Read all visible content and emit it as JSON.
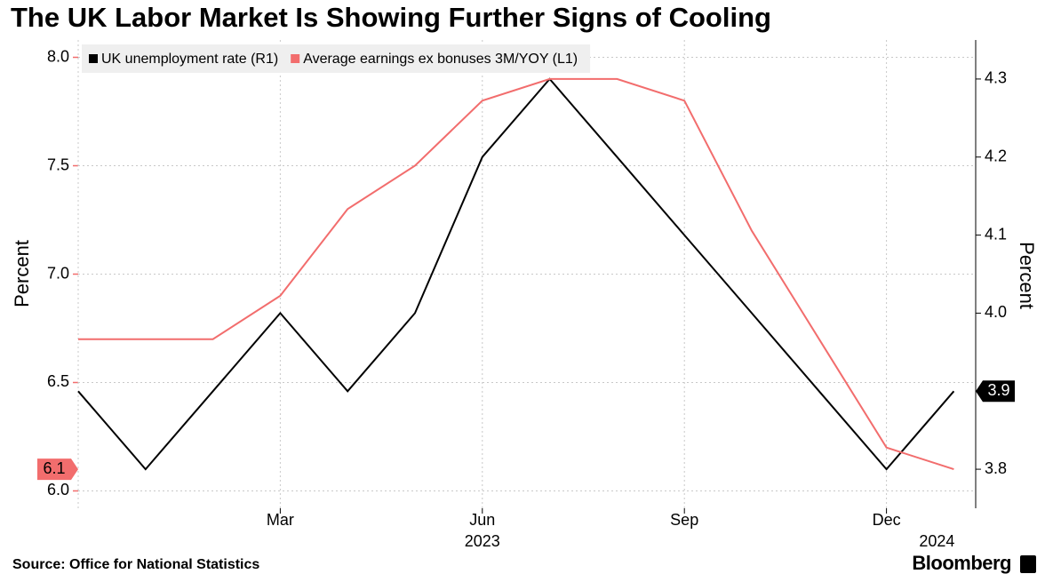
{
  "chart_data": {
    "type": "line",
    "title": "The UK Labor Market Is Showing Further Signs of Cooling",
    "source": "Source: Office for National Statistics",
    "brand": "Bloomberg",
    "ylabel": "Percent",
    "y2label": "Percent",
    "categories": [
      null,
      null,
      null,
      "Mar",
      null,
      null,
      "Jun",
      null,
      null,
      "Sep",
      null,
      null,
      "Dec",
      null
    ],
    "category_years": [
      null,
      null,
      null,
      null,
      null,
      null,
      "2023",
      null,
      null,
      null,
      null,
      null,
      null,
      "2024"
    ],
    "series": [
      {
        "name": "UK unemployment rate (R1)",
        "color": "#000000",
        "axis": "y2",
        "values": [
          3.9,
          3.8,
          3.9,
          4.0,
          3.9,
          4.0,
          4.2,
          4.3,
          4.2,
          4.1,
          4.0,
          3.9,
          3.8,
          3.9
        ]
      },
      {
        "name": "Average earnings ex bonuses 3M/YOY (L1)",
        "color": "#f26d6d",
        "values": [
          6.7,
          6.7,
          6.7,
          6.9,
          7.3,
          7.5,
          7.8,
          7.9,
          7.9,
          7.8,
          7.2,
          6.7,
          6.2,
          6.1
        ]
      }
    ],
    "ylim": [
      5.92,
      8.08
    ],
    "yticks": [
      {
        "value": 6,
        "label": "6.0"
      },
      6.5,
      {
        "value": 7,
        "label": "7.0"
      },
      7.5,
      {
        "value": 8,
        "label": "8.0"
      }
    ],
    "y2lim": [
      3.75,
      4.35
    ],
    "y2ticks": [
      3.8,
      3.9,
      {
        "value": 4,
        "label": "4.0"
      },
      4.1,
      4.2,
      4.3
    ],
    "grid": true,
    "legend": "top-left"
  }
}
